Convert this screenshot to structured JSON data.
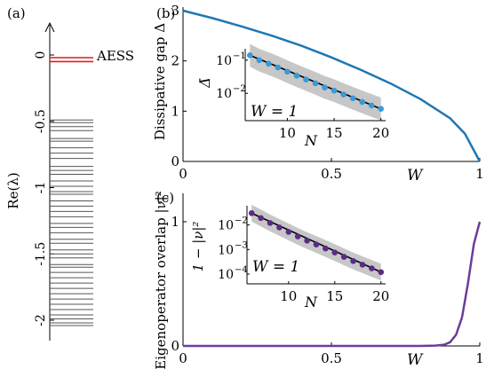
{
  "chart_data": [
    {
      "panel_label": "(a)",
      "type": "spectrum",
      "ylabel": "Re(λ)",
      "yticks": [
        "0",
        "-0.5",
        "-1",
        "-1.5",
        "-2"
      ],
      "ytick_values": [
        0,
        -0.5,
        -1,
        -1.5,
        -2
      ],
      "ylim": [
        -2.2,
        0.15
      ],
      "annotation": "AESS",
      "highlight_values": [
        -0.02,
        -0.05
      ],
      "highlight_color": "#e31a1c",
      "line_color": "#555555",
      "values": [
        -0.49,
        -0.51,
        -0.54,
        -0.57,
        -0.63,
        -0.65,
        -0.7,
        -0.74,
        -0.78,
        -0.84,
        -0.87,
        -0.9,
        -0.95,
        -0.99,
        -1.03,
        -1.05,
        -1.1,
        -1.14,
        -1.18,
        -1.22,
        -1.27,
        -1.3,
        -1.34,
        -1.39,
        -1.42,
        -1.47,
        -1.5,
        -1.53,
        -1.58,
        -1.6,
        -1.64,
        -1.68,
        -1.72,
        -1.76,
        -1.8,
        -1.84,
        -1.88,
        -1.92,
        -1.96,
        -1.99,
        -2.02,
        -2.04
      ]
    },
    {
      "panel_label": "(b)",
      "type": "line",
      "ylabel": "Dissipative gap Δ",
      "xlabel": "W",
      "xticks": [
        "0",
        "0.5",
        "1"
      ],
      "xtick_values": [
        0,
        0.5,
        1
      ],
      "yticks": [
        "0",
        "1",
        "2",
        "3"
      ],
      "ytick_values": [
        0,
        1,
        2,
        3
      ],
      "xlim": [
        0,
        1
      ],
      "ylim": [
        0,
        3
      ],
      "color": "#1f77b4",
      "x": [
        0,
        0.1,
        0.2,
        0.3,
        0.4,
        0.5,
        0.6,
        0.7,
        0.8,
        0.9,
        0.95,
        1.0
      ],
      "y": [
        3.0,
        2.85,
        2.68,
        2.5,
        2.3,
        2.07,
        1.82,
        1.55,
        1.24,
        0.86,
        0.55,
        0.0
      ],
      "inset": {
        "type": "scatter",
        "ylabel": "Δ̄",
        "xlabel": "N",
        "annotation": "W = 1",
        "xticks": [
          "10",
          "15",
          "20"
        ],
        "xtick_values": [
          10,
          15,
          20
        ],
        "yticks": [
          "10",
          "10"
        ],
        "ytick_exponents": [
          "-1",
          "-2"
        ],
        "ytick_values": [
          0.1,
          0.01
        ],
        "log_y": true,
        "xlim": [
          5.5,
          20.5
        ],
        "ylim": [
          0.0015,
          0.22
        ],
        "point_color": "#3a9ad9",
        "fit_color": "#000000",
        "band_color": "#bdbdbd",
        "x": [
          6,
          7,
          8,
          9,
          10,
          11,
          12,
          13,
          14,
          15,
          16,
          17,
          18,
          19,
          20
        ],
        "y": [
          0.14,
          0.1,
          0.078,
          0.06,
          0.045,
          0.034,
          0.026,
          0.02,
          0.015,
          0.012,
          0.0092,
          0.0071,
          0.0055,
          0.0043,
          0.0034
        ]
      }
    },
    {
      "panel_label": "(c)",
      "type": "line",
      "ylabel": "Eigenoperator overlap |ν|²",
      "xlabel": "W",
      "xticks": [
        "0",
        "0.5",
        "1"
      ],
      "xtick_values": [
        0,
        0.5,
        1
      ],
      "yticks": [
        "0",
        "1"
      ],
      "ytick_values": [
        0,
        1
      ],
      "xlim": [
        0,
        1
      ],
      "ylim": [
        0,
        1.1
      ],
      "color": "#6a3d9a",
      "x": [
        0,
        0.5,
        0.8,
        0.85,
        0.88,
        0.9,
        0.92,
        0.94,
        0.96,
        0.98,
        1.0
      ],
      "y": [
        0,
        0,
        0.0,
        0.003,
        0.01,
        0.03,
        0.09,
        0.23,
        0.5,
        0.82,
        1.0
      ],
      "inset": {
        "type": "scatter",
        "ylabel": "1 − |ν|²",
        "xlabel": "N",
        "annotation": "W = 1",
        "xticks": [
          "10",
          "15",
          "20"
        ],
        "xtick_values": [
          10,
          15,
          20
        ],
        "yticks": [
          "10",
          "10",
          "10"
        ],
        "ytick_exponents": [
          "-2",
          "-3",
          "-4"
        ],
        "ytick_values": [
          0.01,
          0.001,
          0.0001
        ],
        "log_y": true,
        "xlim": [
          5.5,
          20.5
        ],
        "ylim": [
          4e-05,
          0.06
        ],
        "point_color": "#5b2a86",
        "fit_color": "#000000",
        "band_color": "#bdbdbd",
        "x": [
          6,
          7,
          8,
          9,
          10,
          11,
          12,
          13,
          14,
          15,
          16,
          17,
          18,
          19,
          20
        ],
        "y": [
          0.03,
          0.019,
          0.012,
          0.0079,
          0.0052,
          0.0034,
          0.0023,
          0.0016,
          0.0011,
          0.00075,
          0.0005,
          0.00034,
          0.00024,
          0.00017,
          0.00012
        ]
      }
    }
  ]
}
